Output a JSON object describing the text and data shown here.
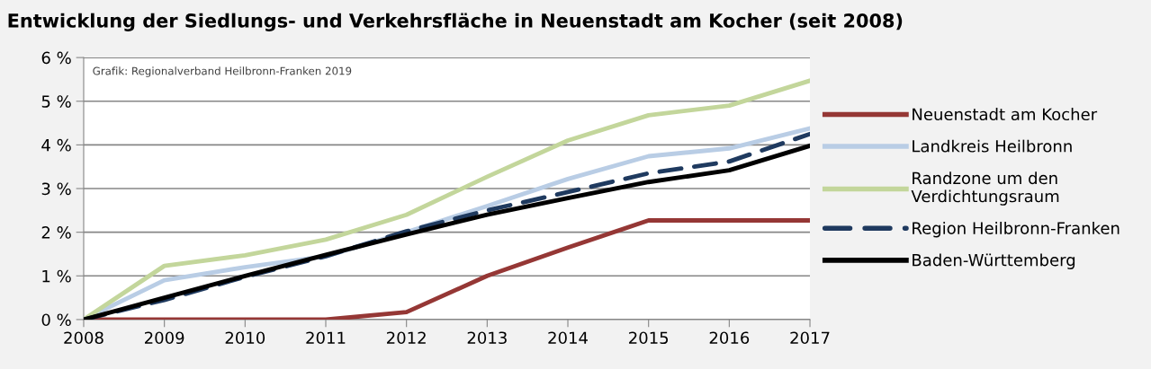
{
  "chart_data": {
    "type": "line",
    "title": "Entwicklung der Siedlungs- und Verkehrsfläche in Neuenstadt am Kocher (seit 2008)",
    "annotations": [
      "Grafik: Regionalverband Heilbronn-Franken 2019"
    ],
    "x": [
      2008,
      2009,
      2010,
      2011,
      2012,
      2013,
      2014,
      2015,
      2016,
      2017
    ],
    "series": [
      {
        "name": "Neuenstadt am Kocher",
        "color": "#953735",
        "values": [
          0,
          0,
          0,
          0,
          0.17,
          1.0,
          1.65,
          2.27,
          2.27,
          2.27
        ]
      },
      {
        "name": "Landkreis Heilbronn",
        "color": "#b9cde5",
        "values": [
          0,
          0.9,
          1.2,
          1.45,
          2.0,
          2.6,
          3.22,
          3.74,
          3.92,
          4.38
        ]
      },
      {
        "name": "Randzone um den\nVerdichtungsraum",
        "color": "#c3d69b",
        "values": [
          0,
          1.23,
          1.47,
          1.83,
          2.4,
          3.27,
          4.1,
          4.68,
          4.9,
          5.47
        ]
      },
      {
        "name": "Region Heilbronn-Franken",
        "color": "#1f3a5f",
        "line_style": "dashed",
        "values": [
          0,
          0.45,
          0.98,
          1.45,
          2.02,
          2.5,
          2.92,
          3.35,
          3.62,
          4.25
        ]
      },
      {
        "name": "Baden-Württemberg",
        "color": "#000000",
        "values": [
          0,
          0.5,
          1.0,
          1.48,
          1.95,
          2.4,
          2.78,
          3.15,
          3.42,
          3.98
        ]
      }
    ],
    "xlim": [
      2008,
      2017
    ],
    "xticks": [
      2008,
      2009,
      2010,
      2011,
      2012,
      2013,
      2014,
      2015,
      2016,
      2017
    ],
    "ylim": [
      0,
      6
    ],
    "yticks": [
      {
        "value": 0,
        "label": "0 %"
      },
      {
        "value": 1,
        "label": "1 %"
      },
      {
        "value": 2,
        "label": "2 %"
      },
      {
        "value": 3,
        "label": "3 %"
      },
      {
        "value": 4,
        "label": "4 %"
      },
      {
        "value": 5,
        "label": "5 %"
      },
      {
        "value": 6,
        "label": "6 %"
      }
    ],
    "grid": "y",
    "legend": "right",
    "marker": "none",
    "line_style": "solid"
  }
}
